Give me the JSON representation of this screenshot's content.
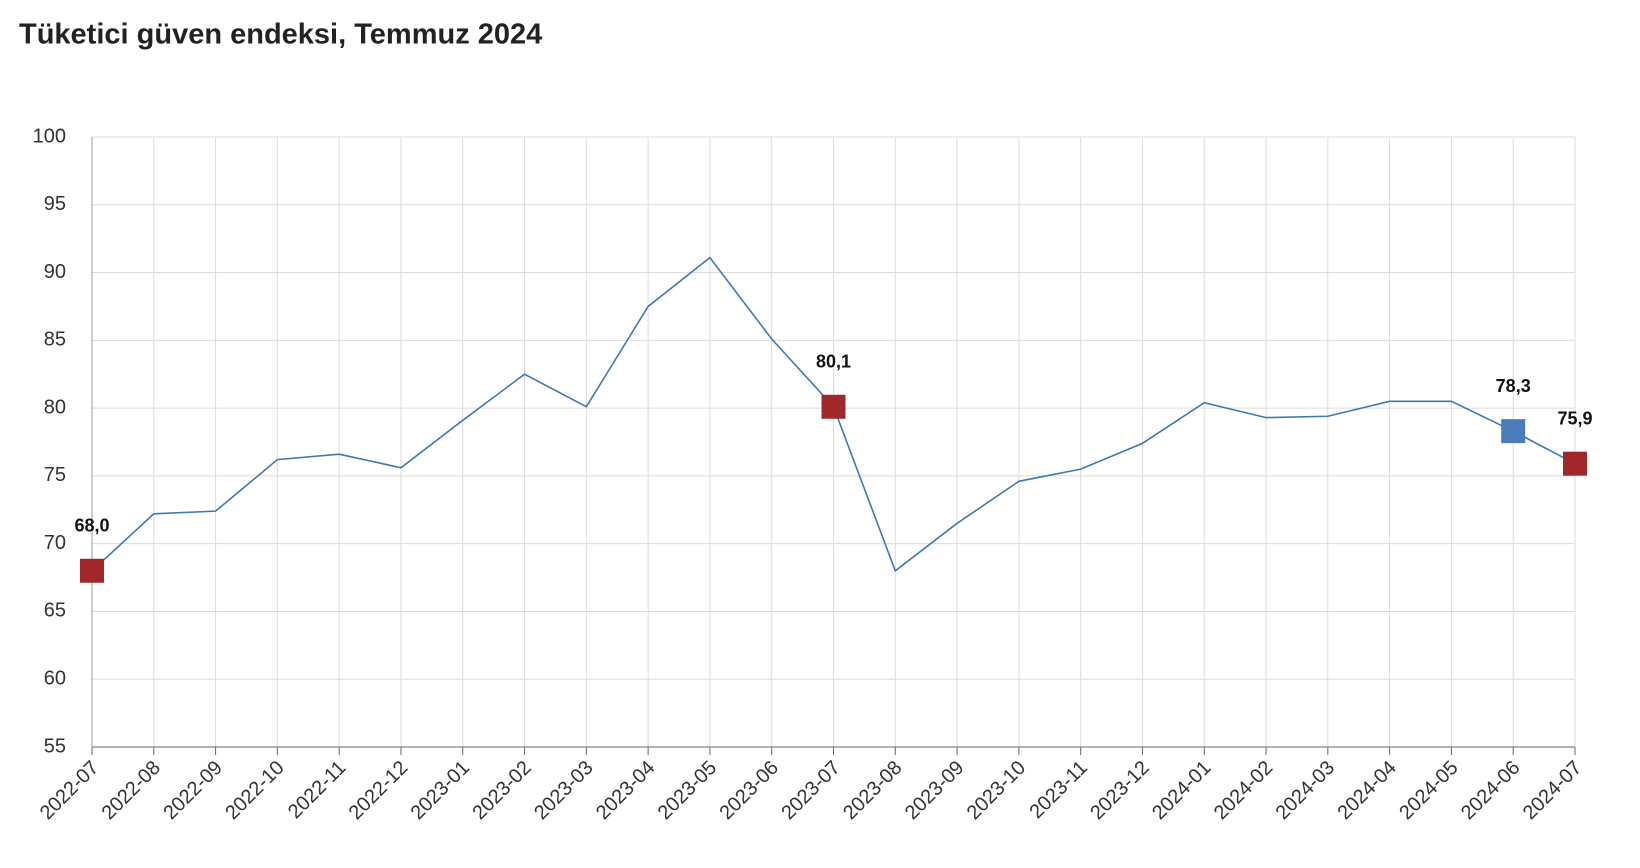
{
  "chart_data": {
    "type": "line",
    "title": "Tüketici güven endeksi, Temmuz 2024",
    "categories": [
      "2022-07",
      "2022-08",
      "2022-09",
      "2022-10",
      "2022-11",
      "2022-12",
      "2023-01",
      "2023-02",
      "2023-03",
      "2023-04",
      "2023-05",
      "2023-06",
      "2023-07",
      "2023-08",
      "2023-09",
      "2023-10",
      "2023-11",
      "2023-12",
      "2024-01",
      "2024-02",
      "2024-03",
      "2024-04",
      "2024-05",
      "2024-06",
      "2024-07"
    ],
    "values": [
      68.0,
      72.2,
      72.4,
      76.2,
      76.6,
      75.6,
      79.1,
      82.5,
      80.1,
      87.5,
      91.1,
      85.1,
      80.1,
      68.0,
      71.5,
      74.6,
      75.5,
      77.4,
      80.4,
      79.3,
      79.4,
      80.5,
      80.5,
      78.3,
      75.9
    ],
    "value_labels": [
      "68,0",
      null,
      null,
      null,
      null,
      null,
      null,
      null,
      null,
      null,
      null,
      null,
      "80,1",
      null,
      null,
      null,
      null,
      null,
      null,
      null,
      null,
      null,
      null,
      "78,3",
      "75,9"
    ],
    "marker_colors": [
      "#a0282a",
      null,
      null,
      null,
      null,
      null,
      null,
      null,
      null,
      null,
      null,
      null,
      "#a0282a",
      null,
      null,
      null,
      null,
      null,
      null,
      null,
      null,
      null,
      null,
      "#4a7dba",
      "#a0282a"
    ],
    "color": "#3f78b3",
    "ylim": [
      55,
      100
    ],
    "yticks": [
      55,
      60,
      65,
      70,
      75,
      80,
      85,
      90,
      95,
      100
    ],
    "grid": true
  }
}
